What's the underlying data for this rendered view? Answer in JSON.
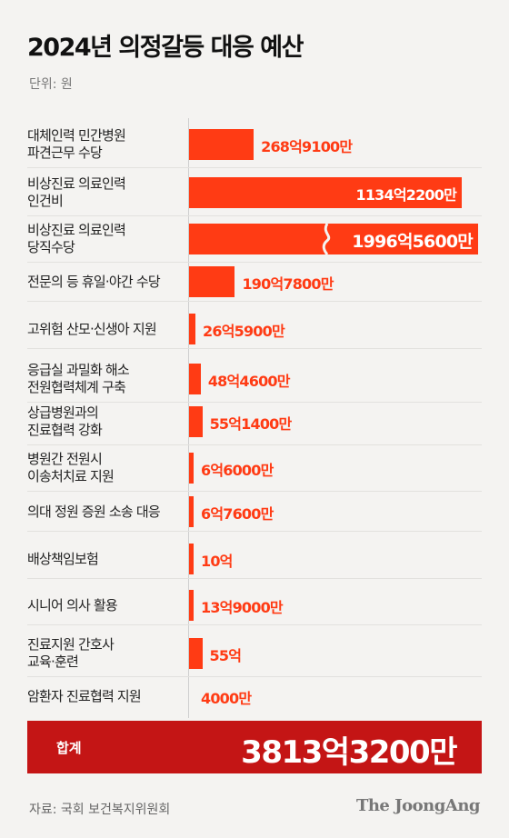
{
  "title": "2024년 의정갈등 대응 예산",
  "unit": "단위: 원",
  "chart_data": {
    "type": "bar",
    "orientation": "horizontal",
    "categories": [
      "대체인력 민간병원\n파견근무 수당",
      "비상진료 의료인력\n인건비",
      "비상진료 의료인력\n당직수당",
      "전문의 등 휴일·야간 수당",
      "고위험 산모·신생아 지원",
      "응급실 과밀화 해소\n전원협력체계 구축",
      "상급병원과의\n진료협력 강화",
      "병원간 전원시\n이송처치료 지원",
      "의대 정원 증원 소송 대응",
      "배상책임보험",
      "시니어 의사 활용",
      "진료지원 간호사\n교육·훈련",
      "암환자 진료협력 지원"
    ],
    "values": [
      26891000000,
      113422000000,
      199656000000,
      19078000000,
      2659000000,
      4846000000,
      5514000000,
      660000000,
      676000000,
      1000000000,
      1390000000,
      5500000000,
      40000000
    ],
    "value_labels": [
      "268억9100만",
      "1134억2200만",
      "1996억5600만",
      "190억7800만",
      "26억5900만",
      "48억4600만",
      "55억1400만",
      "6억6000만",
      "6억7600만",
      "10억",
      "13억9000만",
      "55억",
      "4000만"
    ],
    "broken_bar_index": 2,
    "color": "#ff3b14"
  },
  "total": {
    "label": "합계",
    "value": "3813억3200만",
    "color": "#c41515"
  },
  "source": "자료: 국회 보건복지위원회",
  "brand": "The JoongAng"
}
